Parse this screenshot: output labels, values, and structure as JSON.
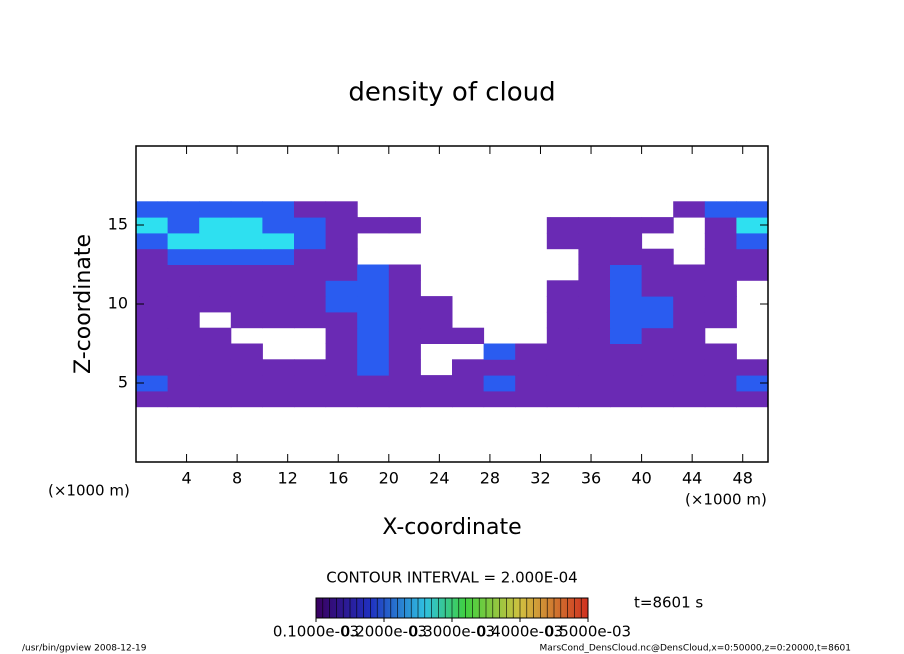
{
  "chart_data": {
    "type": "heatmap",
    "title": "density of cloud",
    "xlabel": "X-coordinate",
    "ylabel": "Z-coordinate",
    "x_unit_left": "(×1000 m)",
    "x_unit_right": "(×1000 m)",
    "xlim": [
      0,
      50
    ],
    "xticks": [
      4,
      8,
      12,
      16,
      20,
      24,
      28,
      32,
      36,
      40,
      44,
      48
    ],
    "ylim": [
      0,
      20
    ],
    "yticks": [
      5,
      10,
      15
    ],
    "x": [
      1.25,
      3.75,
      6.25,
      8.75,
      11.25,
      13.75,
      16.25,
      18.75,
      21.25,
      23.75,
      26.25,
      28.75,
      31.25,
      33.75,
      36.25,
      38.75,
      41.25,
      43.75,
      46.25,
      48.75
    ],
    "z": [
      4,
      5,
      6,
      7,
      8,
      9,
      10,
      11,
      12,
      13,
      14,
      15,
      16
    ],
    "values": [
      [
        0.0001,
        0.0001,
        0.0001,
        0.0001,
        0.0001,
        0.0001,
        0.0001,
        0.0001,
        0.0001,
        0.0001,
        0.0001,
        0.0001,
        0.0001,
        0.0001,
        0.0001,
        0.0001,
        0.0001,
        0.0001,
        0.0001,
        0.0001
      ],
      [
        0.0002,
        0.0001,
        0.0001,
        0.0001,
        0.0001,
        0.0001,
        0.0001,
        0.0001,
        0.0001,
        0.0001,
        0.0001,
        0.0002,
        0.0001,
        0.0001,
        0.0001,
        0.0001,
        0.0001,
        0.0001,
        0.0001,
        0.0002
      ],
      [
        0.0001,
        0.0001,
        0.0001,
        0.0001,
        0.0001,
        0.0001,
        0.0001,
        0.0002,
        0.0001,
        0,
        0.0001,
        0.0001,
        0.0001,
        0.0001,
        0.0001,
        0.0001,
        0.0001,
        0.0001,
        0.0001,
        0.0001
      ],
      [
        0.0001,
        0.0001,
        0.0001,
        0.0001,
        0,
        0,
        0.0001,
        0.0002,
        0.0001,
        0,
        0,
        0.0002,
        0.0001,
        0.0001,
        0.0001,
        0.0001,
        0.0001,
        0.0001,
        0.0001,
        0
      ],
      [
        0.0001,
        0.0001,
        0.0001,
        0,
        0,
        0,
        0.0001,
        0.0002,
        0.0001,
        0.0001,
        0.0001,
        0,
        0,
        0.0001,
        0.0001,
        0.0002,
        0.0001,
        0.0001,
        0,
        0
      ],
      [
        0.0001,
        0.0001,
        0,
        0.0001,
        0.0001,
        0.0001,
        0.0001,
        0.0002,
        0.0001,
        0.0001,
        0,
        0,
        0,
        0.0001,
        0.0001,
        0.0002,
        0.0002,
        0.0001,
        0.0001,
        0
      ],
      [
        0.0001,
        0.0001,
        0.0001,
        0.0001,
        0.0001,
        0.0001,
        0.0002,
        0.0002,
        0.0001,
        0.0001,
        0,
        0,
        0,
        0.0001,
        0.0001,
        0.0002,
        0.0002,
        0.0001,
        0.0001,
        0
      ],
      [
        0.0001,
        0.0001,
        0.0001,
        0.0001,
        0.0001,
        0.0001,
        0.0002,
        0.0002,
        0.0001,
        0,
        0,
        0,
        0,
        0.0001,
        0.0001,
        0.0002,
        0.0001,
        0.0001,
        0.0001,
        0
      ],
      [
        0.0001,
        0.0001,
        0.0001,
        0.0001,
        0.0001,
        0.0001,
        0.0001,
        0.0002,
        0.0001,
        0,
        0,
        0,
        0,
        0,
        0.0001,
        0.0002,
        0.0001,
        0.0001,
        0.0001,
        0.0001
      ],
      [
        0.0001,
        0.0002,
        0.0002,
        0.0002,
        0.0002,
        0.0001,
        0.0001,
        0,
        0,
        0,
        0,
        0,
        0,
        0,
        0.0001,
        0.0001,
        0.0001,
        0,
        0.0001,
        0.0001
      ],
      [
        0.0002,
        0.0003,
        0.0003,
        0.0003,
        0.0003,
        0.0002,
        0.0001,
        0,
        0,
        0,
        0,
        0,
        0,
        0.0001,
        0.0001,
        0.0001,
        0,
        0,
        0.0001,
        0.0002
      ],
      [
        0.0003,
        0.0002,
        0.0003,
        0.0003,
        0.0002,
        0.0002,
        0.0001,
        0.0001,
        0.0001,
        0,
        0,
        0,
        0,
        0.0001,
        0.0001,
        0.0001,
        0.0001,
        0,
        0.0001,
        0.0003
      ],
      [
        0.0002,
        0.0002,
        0.0002,
        0.0002,
        0.0002,
        0.0001,
        0.0001,
        0,
        0,
        0,
        0,
        0,
        0,
        0,
        0,
        0,
        0,
        0.0001,
        0.0002,
        0.0002
      ]
    ],
    "color_levels": [
      0.0001,
      0.0002,
      0.0003
    ],
    "colors": [
      "#6a2ab4",
      "#2a5cf0",
      "#2ee0f0"
    ],
    "contour_interval": "CONTOUR INTERVAL = 2.000E-04",
    "time_label": "t=8601 s",
    "colorbar_lim": [
      0.0001,
      0.0005
    ],
    "colorbar_ticks": [
      {
        "value": 0.0001,
        "label": "0.1000e-03"
      },
      {
        "value": 0.0002,
        "label": "0.2000e-03"
      },
      {
        "value": 0.0003,
        "label": "0.3000e-03"
      },
      {
        "value": 0.0004,
        "label": "0.4000e-03"
      },
      {
        "value": 0.0005,
        "label": "0.5000e-03"
      }
    ],
    "footer_left": "/usr/bin/gpview  2008-12-19",
    "footer_right": "MarsCond_DensCloud.nc@DensCloud,x=0:50000,z=0:20000,t=8601"
  }
}
